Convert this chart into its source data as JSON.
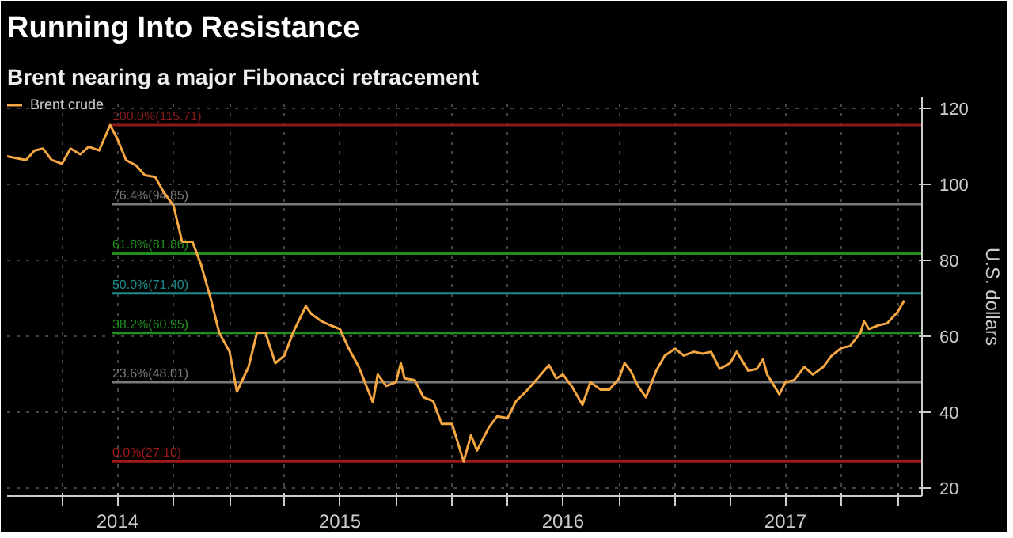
{
  "chart_data": {
    "type": "line",
    "title": "Running Into Resistance",
    "subtitle": "Brent nearing a major Fibonacci retracement",
    "ylabel": "U.S. dollars",
    "x": [
      "2014-01-01",
      "2014-01-15",
      "2014-02-01",
      "2014-02-15",
      "2014-03-01",
      "2014-03-15",
      "2014-04-01",
      "2014-04-15",
      "2014-05-01",
      "2014-05-15",
      "2014-06-01",
      "2014-06-19",
      "2014-07-01",
      "2014-07-15",
      "2014-08-01",
      "2014-08-15",
      "2014-09-01",
      "2014-09-15",
      "2014-10-01",
      "2014-10-15",
      "2014-11-01",
      "2014-11-15",
      "2014-12-01",
      "2014-12-15",
      "2015-01-01",
      "2015-01-13",
      "2015-02-01",
      "2015-02-15",
      "2015-03-01",
      "2015-03-17",
      "2015-04-01",
      "2015-04-15",
      "2015-05-06",
      "2015-05-15",
      "2015-06-01",
      "2015-06-15",
      "2015-07-01",
      "2015-07-15",
      "2015-08-01",
      "2015-08-24",
      "2015-09-01",
      "2015-09-15",
      "2015-10-01",
      "2015-10-09",
      "2015-10-15",
      "2015-11-01",
      "2015-11-15",
      "2015-12-01",
      "2015-12-15",
      "2016-01-01",
      "2016-01-20",
      "2016-02-01",
      "2016-02-11",
      "2016-03-01",
      "2016-03-15",
      "2016-04-01",
      "2016-04-15",
      "2016-05-01",
      "2016-05-15",
      "2016-06-08",
      "2016-06-20",
      "2016-07-01",
      "2016-07-15",
      "2016-08-02",
      "2016-08-15",
      "2016-09-01",
      "2016-09-15",
      "2016-10-01",
      "2016-10-10",
      "2016-10-20",
      "2016-11-01",
      "2016-11-14",
      "2016-12-01",
      "2016-12-15",
      "2017-01-01",
      "2017-01-15",
      "2017-02-01",
      "2017-02-15",
      "2017-03-01",
      "2017-03-15",
      "2017-04-01",
      "2017-04-12",
      "2017-05-01",
      "2017-05-15",
      "2017-05-25",
      "2017-06-01",
      "2017-06-21",
      "2017-07-01",
      "2017-07-15",
      "2017-08-01",
      "2017-08-15",
      "2017-09-01",
      "2017-09-15",
      "2017-10-01",
      "2017-10-15",
      "2017-11-01",
      "2017-11-07",
      "2017-11-15",
      "2017-12-01",
      "2017-12-15",
      "2018-01-01",
      "2018-01-12"
    ],
    "series": [
      {
        "name": "Brent crude",
        "color": "#f5a742",
        "values": [
          107.5,
          107,
          106.5,
          109,
          109.5,
          106.5,
          105.5,
          109.5,
          108,
          110,
          109,
          115.71,
          112,
          106.5,
          105,
          102.5,
          102,
          98,
          94.5,
          85,
          85,
          79,
          70,
          61,
          56,
          45.5,
          52,
          61,
          61,
          53,
          55,
          61,
          68,
          66,
          64,
          63,
          62,
          57,
          52,
          42.7,
          50,
          47,
          48,
          53,
          49,
          48.5,
          44,
          43,
          37,
          37,
          27.1,
          34,
          30,
          36,
          39,
          38.5,
          43,
          45.5,
          48,
          52.5,
          49,
          50,
          47,
          42,
          48,
          46,
          46,
          49,
          53,
          51,
          47,
          44,
          51,
          55,
          56.8,
          55,
          56,
          55.5,
          56,
          51.5,
          53,
          56,
          51,
          51.5,
          54,
          50,
          44.8,
          48,
          48.5,
          52,
          50,
          52,
          55,
          57,
          57.5,
          61,
          64,
          62,
          63,
          63.5,
          66.5,
          69.5
        ]
      }
    ],
    "xlim": [
      "2014-01-01",
      "2018-02-10"
    ],
    "xticks": [
      {
        "value": "2014-04-01",
        "label": null
      },
      {
        "value": "2014-07-01",
        "label": "2014"
      },
      {
        "value": "2014-10-01",
        "label": null
      },
      {
        "value": "2015-01-01",
        "label": null
      },
      {
        "value": "2015-04-01",
        "label": null
      },
      {
        "value": "2015-07-01",
        "label": "2015"
      },
      {
        "value": "2015-10-01",
        "label": null
      },
      {
        "value": "2016-01-01",
        "label": null
      },
      {
        "value": "2016-04-01",
        "label": null
      },
      {
        "value": "2016-07-01",
        "label": "2016"
      },
      {
        "value": "2016-10-01",
        "label": null
      },
      {
        "value": "2017-01-01",
        "label": null
      },
      {
        "value": "2017-04-01",
        "label": null
      },
      {
        "value": "2017-07-01",
        "label": "2017"
      },
      {
        "value": "2017-10-01",
        "label": null
      },
      {
        "value": "2018-01-01",
        "label": null
      }
    ],
    "ylim": [
      18,
      123
    ],
    "yticks": [
      20,
      40,
      60,
      80,
      100,
      120
    ],
    "ref_lines": [
      {
        "axis": "y",
        "value": 115.71,
        "label": "100.0%(115.71)",
        "color": "#8b1a1a"
      },
      {
        "axis": "y",
        "value": 94.85,
        "label": "76.4%(94.85)",
        "color": "#7a7a7a"
      },
      {
        "axis": "y",
        "value": 81.86,
        "label": "61.8%(81.86)",
        "color": "#1f8f1f"
      },
      {
        "axis": "y",
        "value": 71.4,
        "label": "50.0%(71.40)",
        "color": "#1f8a8a"
      },
      {
        "axis": "y",
        "value": 60.95,
        "label": "38.2%(60.95)",
        "color": "#1f8f1f"
      },
      {
        "axis": "y",
        "value": 48.01,
        "label": "23.6%(48.01)",
        "color": "#7a7a7a"
      },
      {
        "axis": "y",
        "value": 27.1,
        "label": "0.0%(27.10)",
        "color": "#a01a1a"
      }
    ],
    "grid": true,
    "legend": "top left",
    "line_style": "solid"
  }
}
